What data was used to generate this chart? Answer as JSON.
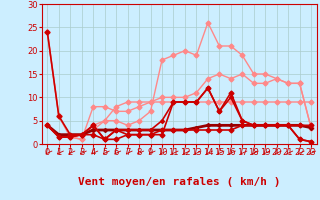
{
  "background_color": "#cceeff",
  "grid_color": "#aacccc",
  "xlabel": "Vent moyen/en rafales ( km/h )",
  "xlabel_color": "#cc0000",
  "xlim": [
    -0.5,
    23.5
  ],
  "ylim": [
    0,
    30
  ],
  "yticks": [
    0,
    5,
    10,
    15,
    20,
    25,
    30
  ],
  "xticks": [
    0,
    1,
    2,
    3,
    4,
    5,
    6,
    7,
    8,
    9,
    10,
    11,
    12,
    13,
    14,
    15,
    16,
    17,
    18,
    19,
    20,
    21,
    22,
    23
  ],
  "series": [
    {
      "x": [
        0,
        1,
        2,
        3,
        4,
        5,
        6,
        7,
        8,
        9,
        10,
        11,
        12,
        13,
        14,
        15,
        16,
        17,
        18,
        19,
        20,
        21,
        22,
        23
      ],
      "y": [
        24,
        6,
        1.5,
        1,
        4,
        5,
        5,
        4,
        5,
        7,
        18,
        19,
        20,
        19,
        26,
        21,
        21,
        19,
        15,
        15,
        14,
        13,
        13,
        3.5
      ],
      "color": "#ff8888",
      "lw": 1.0,
      "marker": "D",
      "ms": 2.5,
      "zorder": 2
    },
    {
      "x": [
        0,
        1,
        2,
        3,
        4,
        5,
        6,
        7,
        8,
        9,
        10,
        11,
        12,
        13,
        14,
        15,
        16,
        17,
        18,
        19,
        20,
        21,
        22,
        23
      ],
      "y": [
        24,
        6,
        1.5,
        1,
        8,
        8,
        7,
        7,
        8,
        9,
        10,
        10,
        10,
        11,
        14,
        15,
        14,
        15,
        13,
        13,
        14,
        13,
        13,
        3.5
      ],
      "color": "#ff8888",
      "lw": 1.0,
      "marker": "D",
      "ms": 2.5,
      "zorder": 2
    },
    {
      "x": [
        0,
        1,
        2,
        3,
        4,
        5,
        6,
        7,
        8,
        9,
        10,
        11,
        12,
        13,
        14,
        15,
        16,
        17,
        18,
        19,
        20,
        21,
        22,
        23
      ],
      "y": [
        4,
        1.5,
        1.5,
        2,
        3,
        5,
        8,
        9,
        9,
        9,
        9,
        9,
        9,
        9,
        9,
        9,
        9,
        9,
        9,
        9,
        9,
        9,
        9,
        9
      ],
      "color": "#ff8888",
      "lw": 1.0,
      "marker": "D",
      "ms": 2.5,
      "zorder": 2
    },
    {
      "x": [
        0,
        1,
        2,
        3,
        4,
        5,
        6,
        7,
        8,
        9,
        10,
        11,
        12,
        13,
        14,
        15,
        16,
        17,
        18,
        19,
        20,
        21,
        22,
        23
      ],
      "y": [
        4,
        1.5,
        1.5,
        2,
        2,
        1,
        1,
        2,
        2,
        2,
        3,
        3,
        3,
        3,
        3,
        3,
        3,
        4,
        4,
        4,
        4,
        4,
        4,
        4
      ],
      "color": "#cc0000",
      "lw": 1.2,
      "marker": "D",
      "ms": 2.5,
      "zorder": 5
    },
    {
      "x": [
        0,
        1,
        2,
        3,
        4,
        5,
        6,
        7,
        8,
        9,
        10,
        11,
        12,
        13,
        14,
        15,
        16,
        17,
        18,
        19,
        20,
        21,
        22,
        23
      ],
      "y": [
        24,
        6,
        2,
        2,
        4,
        1,
        3,
        2,
        2,
        2,
        2,
        9,
        9,
        9,
        12,
        7,
        11,
        5,
        4,
        4,
        4,
        4,
        1,
        0.5
      ],
      "color": "#cc0000",
      "lw": 1.2,
      "marker": "D",
      "ms": 2.5,
      "zorder": 4
    },
    {
      "x": [
        0,
        1,
        2,
        3,
        4,
        5,
        6,
        7,
        8,
        9,
        10,
        11,
        12,
        13,
        14,
        15,
        16,
        17,
        18,
        19,
        20,
        21,
        22,
        23
      ],
      "y": [
        4,
        1.5,
        1.5,
        2,
        4,
        1,
        3,
        3,
        3,
        3,
        5,
        9,
        9,
        9,
        12,
        7,
        10,
        5,
        4,
        4,
        4,
        4,
        1,
        0.5
      ],
      "color": "#cc0000",
      "lw": 1.2,
      "marker": "D",
      "ms": 2.0,
      "zorder": 4
    },
    {
      "x": [
        0,
        1,
        2,
        3,
        4,
        5,
        6,
        7,
        8,
        9,
        10,
        11,
        12,
        13,
        14,
        15,
        16,
        17,
        18,
        19,
        20,
        21,
        22,
        23
      ],
      "y": [
        4,
        2,
        2,
        2,
        3,
        3,
        3,
        3,
        3,
        3,
        3,
        3,
        3,
        3.5,
        4,
        4,
        4,
        4,
        4,
        4,
        4,
        4,
        4,
        3.5
      ],
      "color": "#990000",
      "lw": 2.0,
      "marker": "D",
      "ms": 2.0,
      "zorder": 3
    }
  ],
  "arrow_color": "#cc0000",
  "tick_color": "#cc0000",
  "axis_color": "#cc0000",
  "tick_fontsize": 6,
  "xlabel_fontsize": 8
}
